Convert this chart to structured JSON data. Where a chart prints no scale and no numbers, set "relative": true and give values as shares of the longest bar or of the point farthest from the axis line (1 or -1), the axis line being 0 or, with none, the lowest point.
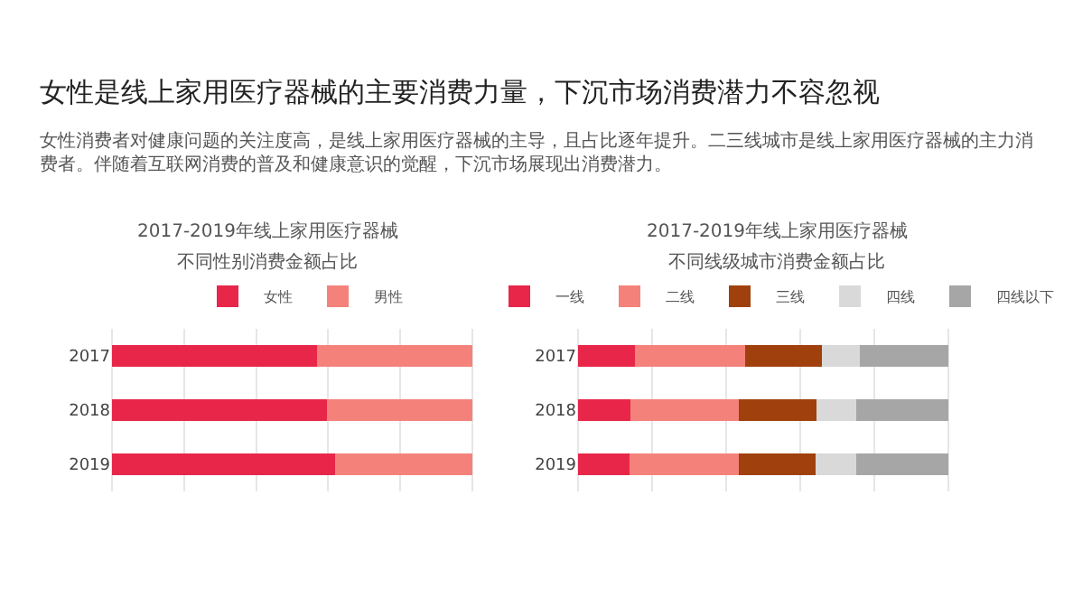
{
  "chart_data": [
    {
      "type": "other",
      "title": "女性是线上家用医疗器械的主要消费力量，下沉市场消费潜力不容忽视",
      "subtitle": "女性消费者对健康问题的关注度高，是线上家用医疗器械的主导，且占比逐年提升。二三线城市是线上家用医疗器械的主力消费者。伴随着互联网消费的普及和健康意识的觉醒，下沉市场展现出消费潜力。"
    },
    {
      "type": "bar",
      "orientation": "horizontal",
      "stacked": true,
      "relative": true,
      "title": "2017-2019年线上家用医疗器械",
      "subtitle": "不同性别消费金额占比",
      "categories": [
        "2017",
        "2018",
        "2019"
      ],
      "grid": "x",
      "legend": "top",
      "series": [
        {
          "name": "女性",
          "color": "#e8264a",
          "values": [
            0.569,
            0.597,
            0.619
          ]
        },
        {
          "name": "男性",
          "color": "#f4827a",
          "values": [
            0.431,
            0.403,
            0.381
          ]
        }
      ]
    },
    {
      "type": "bar",
      "orientation": "horizontal",
      "stacked": true,
      "relative": true,
      "title": "2017-2019年线上家用医疗器械",
      "subtitle": "不同线级城市消费金额占比",
      "categories": [
        "2017",
        "2018",
        "2019"
      ],
      "grid": "x",
      "legend": "top",
      "series": [
        {
          "name": "一线",
          "color": "#e8264a",
          "values": [
            0.153,
            0.142,
            0.139
          ]
        },
        {
          "name": "二线",
          "color": "#f4827a",
          "values": [
            0.298,
            0.292,
            0.294
          ]
        },
        {
          "name": "三线",
          "color": "#a0410d",
          "values": [
            0.206,
            0.209,
            0.209
          ]
        },
        {
          "name": "四线",
          "color": "#d9d9d9",
          "values": [
            0.103,
            0.108,
            0.109
          ]
        },
        {
          "name": "四线以下",
          "color": "#a6a6a6",
          "values": [
            0.24,
            0.249,
            0.249
          ]
        }
      ]
    }
  ]
}
